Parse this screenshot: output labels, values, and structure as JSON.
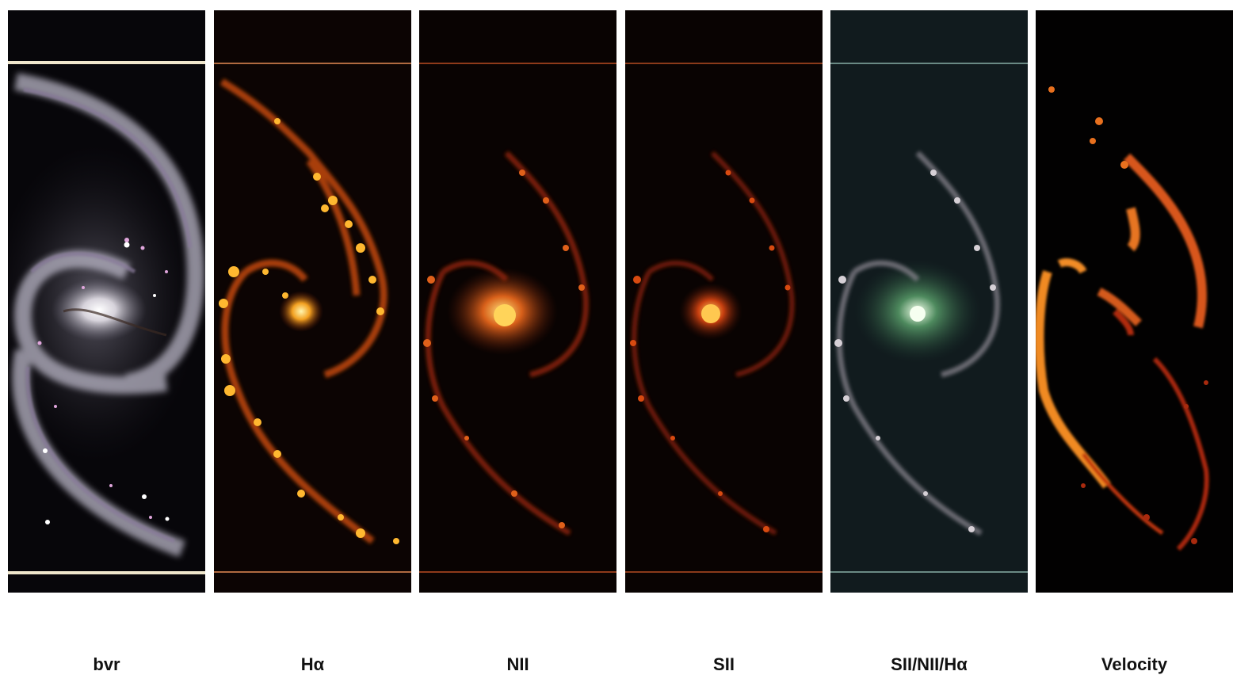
{
  "panels": [
    {
      "id": "bvr",
      "label": "bvr",
      "background": "#08070a",
      "tint": "#e8e2ee",
      "knot": "#d4a6d8",
      "core": "#ffffff"
    },
    {
      "id": "halpha",
      "label": "Hα",
      "background": "#0c0403",
      "tint": "#ff7a1a",
      "knot": "#ffb33a",
      "core": "#fff0a0"
    },
    {
      "id": "nii",
      "label": "NII",
      "background": "#090302",
      "tint": "#c2300c",
      "knot": "#e05a10",
      "core": "#ffd060"
    },
    {
      "id": "sii",
      "label": "SII",
      "background": "#090302",
      "tint": "#b0280a",
      "knot": "#d94b10",
      "core": "#ffc850"
    },
    {
      "id": "ratio",
      "label": "SII/NII/Hα",
      "background": "#101a1c",
      "tint": "#b8b4b8",
      "knot": "#d0ccd0",
      "core": "#dfffd8"
    },
    {
      "id": "velocity",
      "label": "Velocity",
      "background": "#020101",
      "tint": "#e2701e",
      "knot": "#c23a10",
      "core": "#f09030"
    }
  ]
}
